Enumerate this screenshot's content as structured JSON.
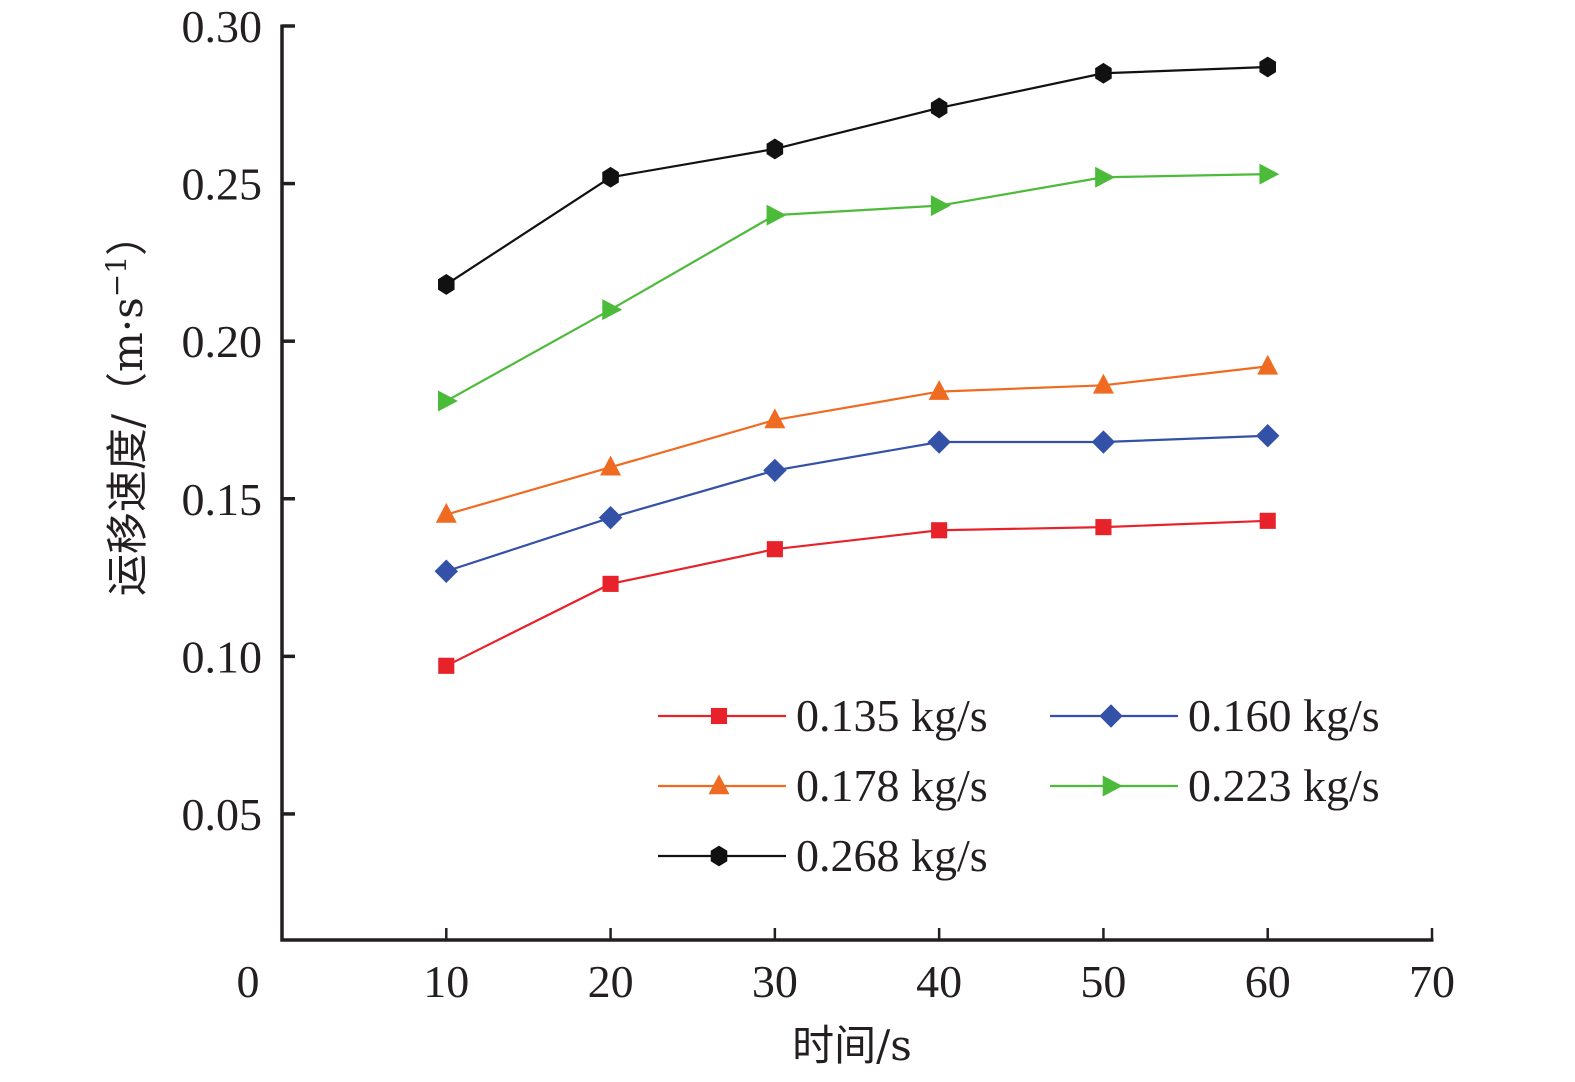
{
  "chart_data": {
    "type": "line",
    "title": "",
    "xlabel": "时间/s",
    "ylabel": "运移速度/（m·s⁻¹）",
    "ylabel_main": "运移速度/（m·s",
    "ylabel_sup": "−1",
    "ylabel_close": "）",
    "x": [
      10,
      20,
      30,
      40,
      50,
      60
    ],
    "xlim": [
      0,
      70
    ],
    "ylim": [
      0.01,
      0.3
    ],
    "xticks": [
      0,
      10,
      20,
      30,
      40,
      50,
      60,
      70
    ],
    "xtick_labels": [
      "0",
      "10",
      "20",
      "30",
      "40",
      "50",
      "60",
      "70"
    ],
    "yticks": [
      0.05,
      0.1,
      0.15,
      0.2,
      0.25,
      0.3
    ],
    "ytick_labels": [
      "0.05",
      "0.10",
      "0.15",
      "0.20",
      "0.25",
      "0.30"
    ],
    "grid": false,
    "legend_position": "bottom-right",
    "series": [
      {
        "name": "0.135 kg/s",
        "color": "#e8222b",
        "marker": "square",
        "values": [
          0.097,
          0.123,
          0.134,
          0.14,
          0.141,
          0.143
        ]
      },
      {
        "name": "0.160 kg/s",
        "color": "#3451a8",
        "marker": "diamond",
        "values": [
          0.127,
          0.144,
          0.159,
          0.168,
          0.168,
          0.17
        ]
      },
      {
        "name": "0.178 kg/s",
        "color": "#f06b22",
        "marker": "triangle-up",
        "values": [
          0.145,
          0.16,
          0.175,
          0.184,
          0.186,
          0.192
        ]
      },
      {
        "name": "0.223 kg/s",
        "color": "#4dbb3a",
        "marker": "triangle-right",
        "values": [
          0.181,
          0.21,
          0.24,
          0.243,
          0.252,
          0.253
        ]
      },
      {
        "name": "0.268 kg/s",
        "color": "#111111",
        "marker": "hexagon",
        "values": [
          0.218,
          0.252,
          0.261,
          0.274,
          0.285,
          0.287
        ]
      }
    ]
  }
}
